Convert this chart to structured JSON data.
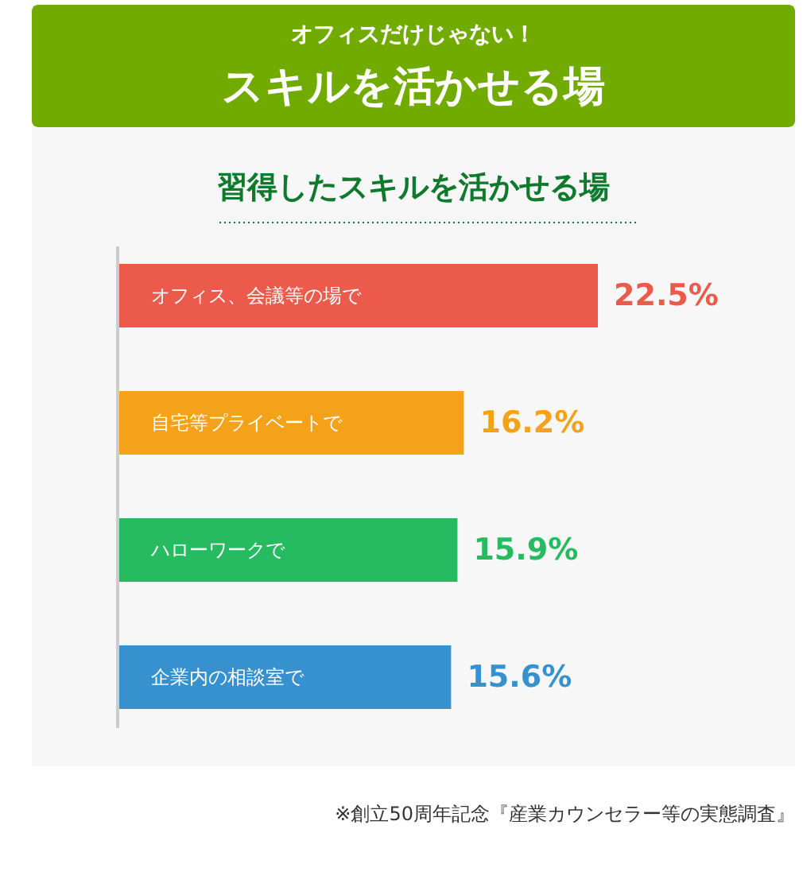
{
  "chart_data": {
    "type": "bar",
    "orientation": "horizontal",
    "subtitle": "オフィスだけじゃない！",
    "title": "スキルを活かせる場",
    "annotations": [
      "習得したスキルを活かせる場",
      "※創立50周年記念『産業カウンセラー等の実態調査』"
    ],
    "categories": [
      "オフィス、会議等の場で",
      "自宅等プライベートで",
      "ハローワークで",
      "企業内の相談室で"
    ],
    "values": [
      22.5,
      16.2,
      15.9,
      15.6
    ],
    "colors": [
      "#eb5a4b",
      "#f5a21b",
      "#26bb61",
      "#3791cf"
    ],
    "value_labels": [
      "22.5%",
      "16.2%",
      "15.9%",
      "15.6%"
    ]
  }
}
